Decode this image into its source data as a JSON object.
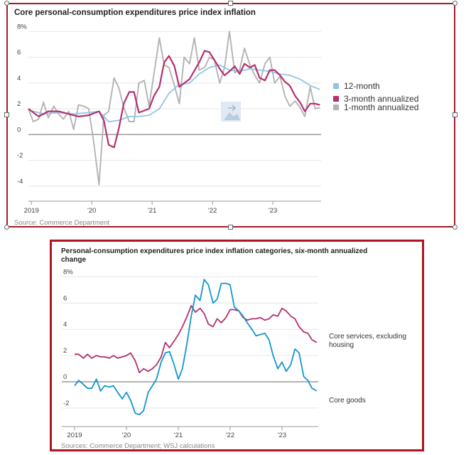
{
  "chart_data": [
    {
      "type": "line",
      "title": "Core personal-consumption expenditures price index inflation",
      "source": "Source: Commerce Department",
      "x_tick_labels": [
        "2019",
        "'20",
        "'21",
        "'22",
        "'23"
      ],
      "y_tick_labels": [
        "8%",
        "6",
        "4",
        "2",
        "0",
        "-2",
        "-4"
      ],
      "y_ticks": [
        8,
        6,
        4,
        2,
        0,
        -2,
        -4
      ],
      "ylim": [
        -4.4,
        8.4
      ],
      "xlim": [
        2019.0,
        2023.85
      ],
      "series": [
        {
          "name": "12-month",
          "color": "#8ec6e8",
          "x": [
            2019.0,
            2019.25,
            2019.5,
            2019.75,
            2020.0,
            2020.17,
            2020.33,
            2020.5,
            2020.67,
            2020.83,
            2021.0,
            2021.17,
            2021.33,
            2021.5,
            2021.67,
            2021.83,
            2022.0,
            2022.17,
            2022.33,
            2022.5,
            2022.67,
            2022.83,
            2023.0,
            2023.17,
            2023.33,
            2023.5,
            2023.67,
            2023.83
          ],
          "values": [
            1.9,
            1.6,
            1.7,
            1.6,
            1.7,
            1.8,
            1.0,
            1.1,
            1.4,
            1.4,
            1.5,
            2.0,
            3.2,
            3.9,
            4.0,
            4.7,
            5.2,
            5.4,
            5.0,
            4.9,
            5.1,
            5.0,
            4.9,
            4.7,
            4.6,
            4.3,
            3.8,
            3.5
          ]
        },
        {
          "name": "3-month annualized",
          "color": "#b5306f",
          "x": [
            2019.0,
            2019.17,
            2019.33,
            2019.5,
            2019.67,
            2019.83,
            2020.0,
            2020.17,
            2020.25,
            2020.33,
            2020.42,
            2020.5,
            2020.58,
            2020.67,
            2020.75,
            2020.83,
            2021.0,
            2021.08,
            2021.17,
            2021.25,
            2021.33,
            2021.42,
            2021.5,
            2021.67,
            2021.83,
            2021.92,
            2022.0,
            2022.08,
            2022.17,
            2022.25,
            2022.33,
            2022.42,
            2022.5,
            2022.58,
            2022.67,
            2022.75,
            2022.83,
            2022.92,
            2023.0,
            2023.08,
            2023.17,
            2023.25,
            2023.33,
            2023.42,
            2023.5,
            2023.58,
            2023.67,
            2023.75,
            2023.83
          ],
          "values": [
            2.0,
            1.4,
            1.8,
            1.8,
            1.6,
            1.4,
            1.5,
            1.8,
            1.1,
            -0.8,
            -1.0,
            0.5,
            2.4,
            3.3,
            3.3,
            1.7,
            2.0,
            3.0,
            3.7,
            5.6,
            6.1,
            5.3,
            3.7,
            4.3,
            5.6,
            6.5,
            6.4,
            5.8,
            5.1,
            4.6,
            4.9,
            5.3,
            4.7,
            5.5,
            5.2,
            5.4,
            4.4,
            4.2,
            5.0,
            5.0,
            4.6,
            4.1,
            3.8,
            3.0,
            2.5,
            1.8,
            2.4,
            2.4,
            2.3
          ]
        },
        {
          "name": "1-month annualized",
          "color": "#b3b3b3",
          "x": [
            2019.0,
            2019.08,
            2019.17,
            2019.25,
            2019.33,
            2019.42,
            2019.5,
            2019.58,
            2019.67,
            2019.75,
            2019.83,
            2019.92,
            2020.0,
            2020.08,
            2020.17,
            2020.25,
            2020.33,
            2020.42,
            2020.5,
            2020.58,
            2020.67,
            2020.75,
            2020.83,
            2020.92,
            2021.0,
            2021.08,
            2021.17,
            2021.25,
            2021.33,
            2021.42,
            2021.5,
            2021.58,
            2021.67,
            2021.75,
            2021.83,
            2021.92,
            2022.0,
            2022.08,
            2022.17,
            2022.25,
            2022.33,
            2022.42,
            2022.5,
            2022.58,
            2022.67,
            2022.75,
            2022.83,
            2022.92,
            2023.0,
            2023.08,
            2023.17,
            2023.25,
            2023.33,
            2023.42,
            2023.5,
            2023.58,
            2023.67,
            2023.75,
            2023.83
          ],
          "values": [
            2.0,
            1.0,
            1.2,
            2.5,
            1.3,
            2.2,
            1.6,
            1.2,
            1.8,
            0.4,
            2.3,
            2.2,
            2.0,
            -0.5,
            -3.9,
            1.5,
            1.8,
            4.4,
            3.6,
            2.1,
            1.0,
            1.0,
            4.0,
            4.2,
            2.2,
            4.7,
            7.5,
            5.4,
            5.2,
            3.8,
            2.4,
            6.0,
            5.5,
            7.5,
            5.0,
            5.2,
            6.0,
            5.8,
            4.0,
            5.2,
            8.0,
            4.8,
            5.0,
            6.7,
            5.4,
            4.6,
            4.0,
            5.5,
            6.0,
            4.0,
            4.5,
            3.0,
            2.2,
            2.6,
            2.1,
            1.4,
            3.7,
            2.0,
            2.1
          ]
        }
      ]
    },
    {
      "type": "line",
      "title": "Personal-consumption expenditures price index inflation categories, six-month annualized change",
      "source": "Sources: Commerce Department; WSJ calculations",
      "x_tick_labels": [
        "2019",
        "'20",
        "'21",
        "'22",
        "'23"
      ],
      "y_tick_labels": [
        "8%",
        "6",
        "4",
        "2",
        "0",
        "-2"
      ],
      "y_ticks": [
        8,
        6,
        4,
        2,
        0,
        -2
      ],
      "ylim": [
        -2.6,
        8.4
      ],
      "xlim": [
        2019.0,
        2023.7
      ],
      "series": [
        {
          "name": "Core services, excluding housing",
          "color": "#b5306f",
          "x": [
            2019.0,
            2019.08,
            2019.17,
            2019.25,
            2019.33,
            2019.42,
            2019.5,
            2019.58,
            2019.67,
            2019.75,
            2019.83,
            2019.92,
            2020.0,
            2020.08,
            2020.17,
            2020.25,
            2020.33,
            2020.42,
            2020.5,
            2020.58,
            2020.67,
            2020.75,
            2020.83,
            2020.92,
            2021.0,
            2021.08,
            2021.17,
            2021.25,
            2021.33,
            2021.42,
            2021.5,
            2021.58,
            2021.67,
            2021.75,
            2021.83,
            2021.92,
            2022.0,
            2022.08,
            2022.17,
            2022.25,
            2022.33,
            2022.42,
            2022.5,
            2022.58,
            2022.67,
            2022.75,
            2022.83,
            2022.92,
            2023.0,
            2023.08,
            2023.17,
            2023.25,
            2023.33,
            2023.42,
            2023.5,
            2023.58,
            2023.67
          ],
          "values": [
            2.1,
            2.1,
            1.8,
            2.1,
            1.8,
            2.0,
            1.9,
            1.9,
            1.8,
            2.0,
            1.8,
            1.9,
            2.0,
            2.2,
            1.6,
            0.7,
            1.0,
            0.8,
            1.0,
            1.3,
            1.9,
            3.0,
            2.6,
            3.1,
            3.6,
            4.2,
            5.0,
            5.8,
            5.3,
            5.6,
            5.2,
            4.4,
            4.2,
            4.8,
            4.5,
            4.9,
            5.5,
            5.5,
            5.4,
            4.9,
            4.7,
            4.8,
            4.8,
            4.9,
            4.7,
            4.8,
            5.1,
            5.0,
            5.6,
            5.4,
            5.0,
            4.8,
            4.2,
            3.8,
            3.7,
            3.2,
            3.0
          ]
        },
        {
          "name": "Core goods",
          "color": "#1496cc",
          "x": [
            2019.0,
            2019.08,
            2019.17,
            2019.25,
            2019.33,
            2019.42,
            2019.5,
            2019.58,
            2019.67,
            2019.75,
            2019.83,
            2019.92,
            2020.0,
            2020.08,
            2020.17,
            2020.25,
            2020.33,
            2020.42,
            2020.5,
            2020.58,
            2020.67,
            2020.75,
            2020.83,
            2020.92,
            2021.0,
            2021.08,
            2021.17,
            2021.25,
            2021.33,
            2021.42,
            2021.5,
            2021.58,
            2021.67,
            2021.75,
            2021.83,
            2021.92,
            2022.0,
            2022.08,
            2022.17,
            2022.25,
            2022.33,
            2022.42,
            2022.5,
            2022.58,
            2022.67,
            2022.75,
            2022.83,
            2022.92,
            2023.0,
            2023.08,
            2023.17,
            2023.25,
            2023.33,
            2023.42,
            2023.5,
            2023.58,
            2023.67
          ],
          "values": [
            -0.3,
            0.1,
            -0.2,
            -0.5,
            -0.5,
            0.2,
            -0.7,
            -0.3,
            -0.4,
            -0.3,
            -0.8,
            -1.3,
            -0.8,
            -1.4,
            -2.4,
            -2.5,
            -2.2,
            -0.8,
            -0.3,
            0.2,
            1.5,
            2.2,
            2.3,
            1.3,
            0.2,
            1.0,
            3.0,
            5.0,
            6.6,
            6.2,
            7.8,
            7.4,
            6.0,
            6.3,
            7.5,
            7.5,
            7.4,
            5.7,
            5.4,
            5.0,
            4.5,
            4.0,
            3.5,
            3.6,
            3.7,
            3.2,
            2.0,
            1.0,
            1.5,
            0.8,
            1.3,
            2.5,
            2.2,
            0.4,
            0.1,
            -0.5,
            -0.7
          ]
        }
      ]
    }
  ]
}
